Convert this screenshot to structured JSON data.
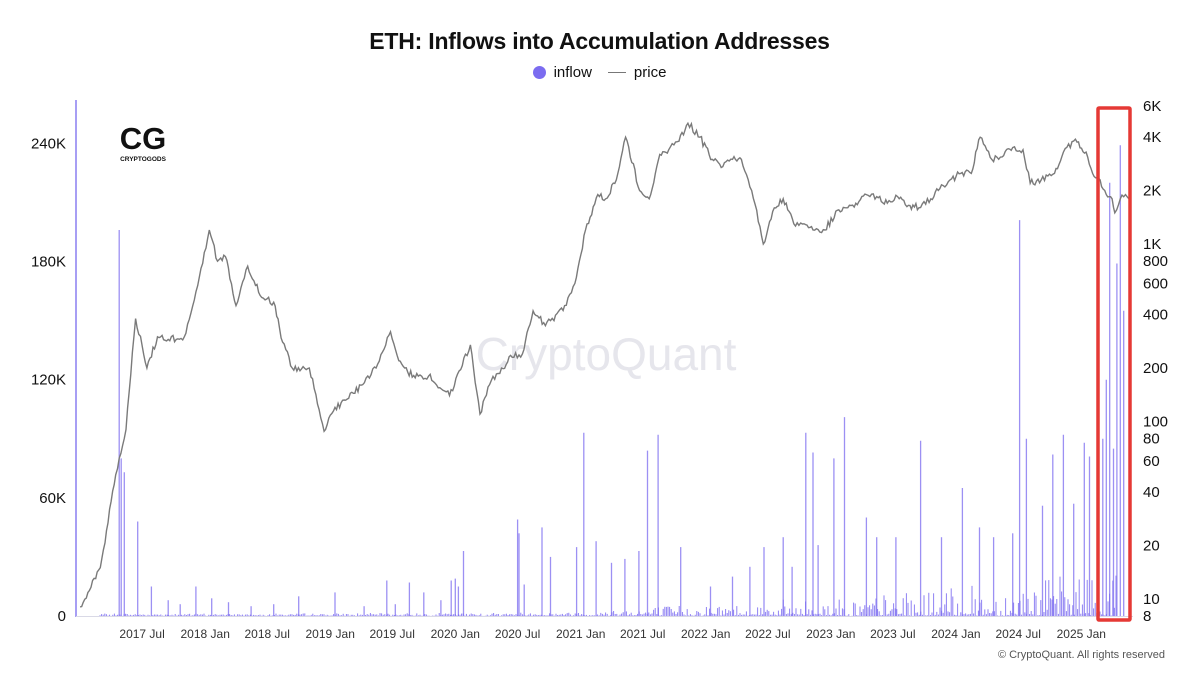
{
  "chart_data": {
    "type": "bar",
    "title": "ETH: Inflows into Accumulation Addresses",
    "legend": [
      {
        "name": "inflow",
        "marker": "dot",
        "color": "#7b6cf0"
      },
      {
        "name": "price",
        "marker": "line",
        "color": "#7a7a7a"
      }
    ],
    "legend_position": "top-center",
    "grid": false,
    "x_axis": {
      "type": "date",
      "range": [
        "2016-12-20",
        "2025-06-01"
      ],
      "tick_labels": [
        "2017 Jul",
        "2018 Jan",
        "2018 Jul",
        "2019 Jan",
        "2019 Jul",
        "2020 Jan",
        "2020 Jul",
        "2021 Jan",
        "2021 Jul",
        "2022 Jan",
        "2022 Jul",
        "2023 Jan",
        "2023 Jul",
        "2024 Jan",
        "2024 Jul",
        "2025 Jan"
      ],
      "tick_dates": [
        "2017-07-01",
        "2018-01-01",
        "2018-07-01",
        "2019-01-01",
        "2019-07-01",
        "2020-01-01",
        "2020-07-01",
        "2021-01-01",
        "2021-07-01",
        "2022-01-01",
        "2022-07-01",
        "2023-01-01",
        "2023-07-01",
        "2024-01-01",
        "2024-07-01",
        "2025-01-01"
      ]
    },
    "y_left": {
      "label": "",
      "scale": "linear",
      "range": [
        0,
        262000
      ],
      "tick_values": [
        0,
        60000,
        120000,
        180000,
        240000
      ],
      "tick_labels": [
        "0",
        "60K",
        "120K",
        "180K",
        "240K"
      ]
    },
    "y_right": {
      "label": "",
      "scale": "log",
      "range": [
        8,
        6000
      ],
      "tick_values": [
        8,
        10,
        20,
        40,
        60,
        80,
        100,
        200,
        400,
        600,
        800,
        1000,
        2000,
        4000,
        6000
      ],
      "tick_labels": [
        "8",
        "10",
        "20",
        "40",
        "60",
        "80",
        "100",
        "200",
        "400",
        "600",
        "800",
        "1K",
        "2K",
        "4K",
        "6K"
      ]
    },
    "series": [
      {
        "name": "inflow",
        "axis": "left",
        "color": "#7b6cf0",
        "x": [
          "2017-04-25",
          "2017-05-01",
          "2017-05-10",
          "2017-06-18",
          "2017-07-28",
          "2017-09-15",
          "2017-10-20",
          "2017-12-05",
          "2018-01-20",
          "2018-03-10",
          "2018-05-15",
          "2018-07-20",
          "2018-10-01",
          "2019-01-15",
          "2019-04-10",
          "2019-06-15",
          "2019-07-10",
          "2019-08-20",
          "2019-10-01",
          "2019-11-20",
          "2019-12-20",
          "2020-01-01",
          "2020-01-10",
          "2020-01-25",
          "2020-07-01",
          "2020-07-05",
          "2020-07-20",
          "2020-09-10",
          "2020-10-05",
          "2020-12-20",
          "2021-01-10",
          "2021-02-15",
          "2021-04-01",
          "2021-05-10",
          "2021-06-20",
          "2021-07-15",
          "2021-08-15",
          "2021-10-20",
          "2022-01-15",
          "2022-03-20",
          "2022-05-10",
          "2022-06-20",
          "2022-08-15",
          "2022-09-10",
          "2022-10-20",
          "2022-11-10",
          "2022-11-25",
          "2023-01-10",
          "2023-02-10",
          "2023-04-15",
          "2023-05-15",
          "2023-07-10",
          "2023-09-20",
          "2023-11-20",
          "2024-01-20",
          "2024-03-10",
          "2024-04-20",
          "2024-06-15",
          "2024-07-05",
          "2024-07-25",
          "2024-09-10",
          "2024-10-10",
          "2024-11-10",
          "2024-12-10",
          "2025-01-10",
          "2025-01-25",
          "2025-02-20",
          "2025-03-05",
          "2025-03-15",
          "2025-03-25",
          "2025-04-05",
          "2025-04-15",
          "2025-04-25",
          "2025-05-05"
        ],
        "values": [
          196000,
          80000,
          73000,
          48000,
          15000,
          8000,
          6000,
          15000,
          9000,
          7000,
          5000,
          6000,
          10000,
          12000,
          5000,
          18000,
          6000,
          17000,
          12000,
          8000,
          18000,
          19000,
          15000,
          33000,
          49000,
          42000,
          16000,
          45000,
          30000,
          35000,
          93000,
          38000,
          27000,
          29000,
          33000,
          84000,
          92000,
          35000,
          15000,
          20000,
          25000,
          35000,
          40000,
          25000,
          93000,
          83000,
          36000,
          80000,
          101000,
          50000,
          40000,
          40000,
          89000,
          40000,
          65000,
          45000,
          40000,
          42000,
          201000,
          90000,
          56000,
          82000,
          92000,
          57000,
          88000,
          81000,
          74000,
          90000,
          120000,
          220000,
          85000,
          179000,
          239000,
          155000
        ],
        "baseline": "dense low-level daily inflows near 0–5K across the whole period"
      },
      {
        "name": "price",
        "axis": "right",
        "color": "#7a7a7a",
        "x": [
          "2017-01-01",
          "2017-03-01",
          "2017-04-15",
          "2017-05-15",
          "2017-06-12",
          "2017-07-15",
          "2017-08-15",
          "2017-09-15",
          "2017-11-01",
          "2017-12-15",
          "2018-01-13",
          "2018-02-06",
          "2018-03-01",
          "2018-04-01",
          "2018-05-05",
          "2018-06-15",
          "2018-07-20",
          "2018-08-15",
          "2018-09-12",
          "2018-11-01",
          "2018-12-14",
          "2019-01-15",
          "2019-02-24",
          "2019-04-01",
          "2019-05-15",
          "2019-06-26",
          "2019-07-20",
          "2019-08-15",
          "2019-09-15",
          "2019-10-15",
          "2019-12-15",
          "2020-02-14",
          "2020-03-13",
          "2020-04-15",
          "2020-05-15",
          "2020-06-15",
          "2020-07-15",
          "2020-08-15",
          "2020-09-15",
          "2020-10-15",
          "2020-11-15",
          "2020-12-15",
          "2021-01-15",
          "2021-02-20",
          "2021-03-15",
          "2021-04-15",
          "2021-05-12",
          "2021-06-22",
          "2021-07-20",
          "2021-08-20",
          "2021-09-15",
          "2021-10-15",
          "2021-11-10",
          "2021-12-15",
          "2022-01-20",
          "2022-02-15",
          "2022-03-20",
          "2022-04-15",
          "2022-05-15",
          "2022-06-18",
          "2022-07-20",
          "2022-08-15",
          "2022-09-15",
          "2022-10-15",
          "2022-11-10",
          "2022-12-15",
          "2023-01-20",
          "2023-02-15",
          "2023-03-15",
          "2023-04-15",
          "2023-05-15",
          "2023-06-15",
          "2023-07-15",
          "2023-08-20",
          "2023-09-15",
          "2023-10-20",
          "2023-11-15",
          "2023-12-15",
          "2024-01-15",
          "2024-02-15",
          "2024-03-12",
          "2024-04-15",
          "2024-05-15",
          "2024-06-15",
          "2024-07-15",
          "2024-08-05",
          "2024-09-06",
          "2024-10-15",
          "2024-11-10",
          "2024-12-15",
          "2025-01-15",
          "2025-02-03",
          "2025-02-25",
          "2025-03-15",
          "2025-04-01",
          "2025-04-09",
          "2025-04-25",
          "2025-05-10",
          "2025-05-20"
        ],
        "values": [
          9,
          15,
          50,
          90,
          380,
          200,
          300,
          290,
          300,
          650,
          1200,
          800,
          850,
          450,
          750,
          500,
          470,
          280,
          200,
          200,
          88,
          120,
          135,
          160,
          200,
          320,
          220,
          190,
          180,
          180,
          140,
          270,
          110,
          170,
          200,
          230,
          240,
          420,
          360,
          370,
          450,
          600,
          1200,
          1900,
          1800,
          2300,
          4000,
          2000,
          1800,
          3200,
          3400,
          3800,
          4800,
          4000,
          3000,
          2700,
          3000,
          3000,
          2000,
          1000,
          1600,
          1800,
          1300,
          1300,
          1200,
          1200,
          1550,
          1600,
          1700,
          1900,
          1850,
          1700,
          1850,
          1650,
          1600,
          1800,
          2050,
          2300,
          2500,
          2500,
          4000,
          3000,
          3100,
          3500,
          3400,
          2200,
          2300,
          2500,
          3300,
          3900,
          3300,
          2500,
          2300,
          1900,
          1800,
          1500,
          1800,
          1900,
          1800
        ]
      }
    ],
    "annotations": [
      {
        "type": "highlight-rectangle",
        "color": "#e53935",
        "x_range": [
          "2025-02-20",
          "2025-06-01"
        ],
        "note": "red box around recent inflow spikes"
      }
    ]
  },
  "branding": {
    "logo_text": "CG",
    "logo_caption": "CRYPTOGODS",
    "watermark": "CryptoQuant"
  },
  "footer": {
    "copyright": "© CryptoQuant. All rights reserved"
  }
}
